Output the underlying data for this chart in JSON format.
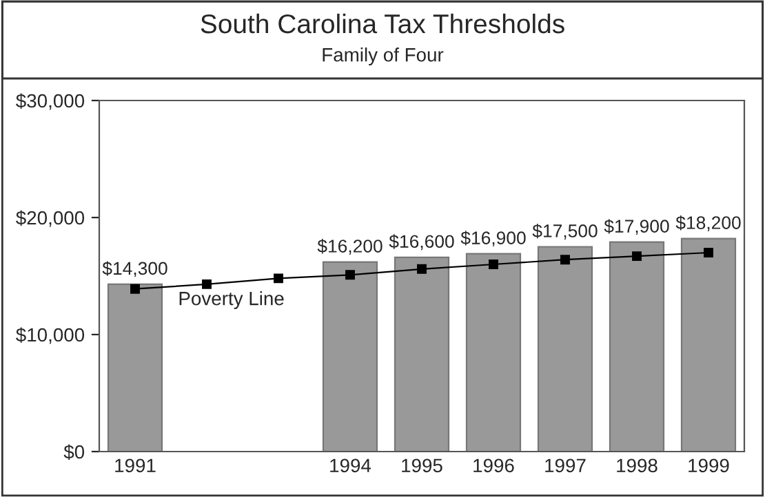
{
  "chart_data": {
    "type": "bar",
    "title": "South Carolina Tax Thresholds",
    "subtitle": "Family of Four",
    "categories": [
      "1991",
      null,
      null,
      "1994",
      "1995",
      "1996",
      "1997",
      "1998",
      "1999"
    ],
    "series": [
      {
        "name": null,
        "type": "bar",
        "color": "#999999",
        "values": [
          14300,
          null,
          null,
          16200,
          16600,
          16900,
          17500,
          17900,
          18200
        ],
        "value_labels": [
          "$14,300",
          null,
          null,
          "$16,200",
          "$16,600",
          "$16,900",
          "$17,500",
          "$17,900",
          "$18,200"
        ]
      },
      {
        "name": "Poverty Line",
        "type": "line",
        "color": "#000000",
        "marker": "square",
        "values": [
          13900,
          14300,
          14800,
          15100,
          15600,
          16000,
          16400,
          16700,
          17000
        ]
      }
    ],
    "ylim": [
      0,
      30000
    ],
    "yticks": [
      {
        "value": 0,
        "label": "$0"
      },
      {
        "value": 10000,
        "label": "$10,000"
      },
      {
        "value": 20000,
        "label": "$20,000"
      },
      {
        "value": 30000,
        "label": "$30,000"
      }
    ],
    "grid": false,
    "legend": false
  }
}
